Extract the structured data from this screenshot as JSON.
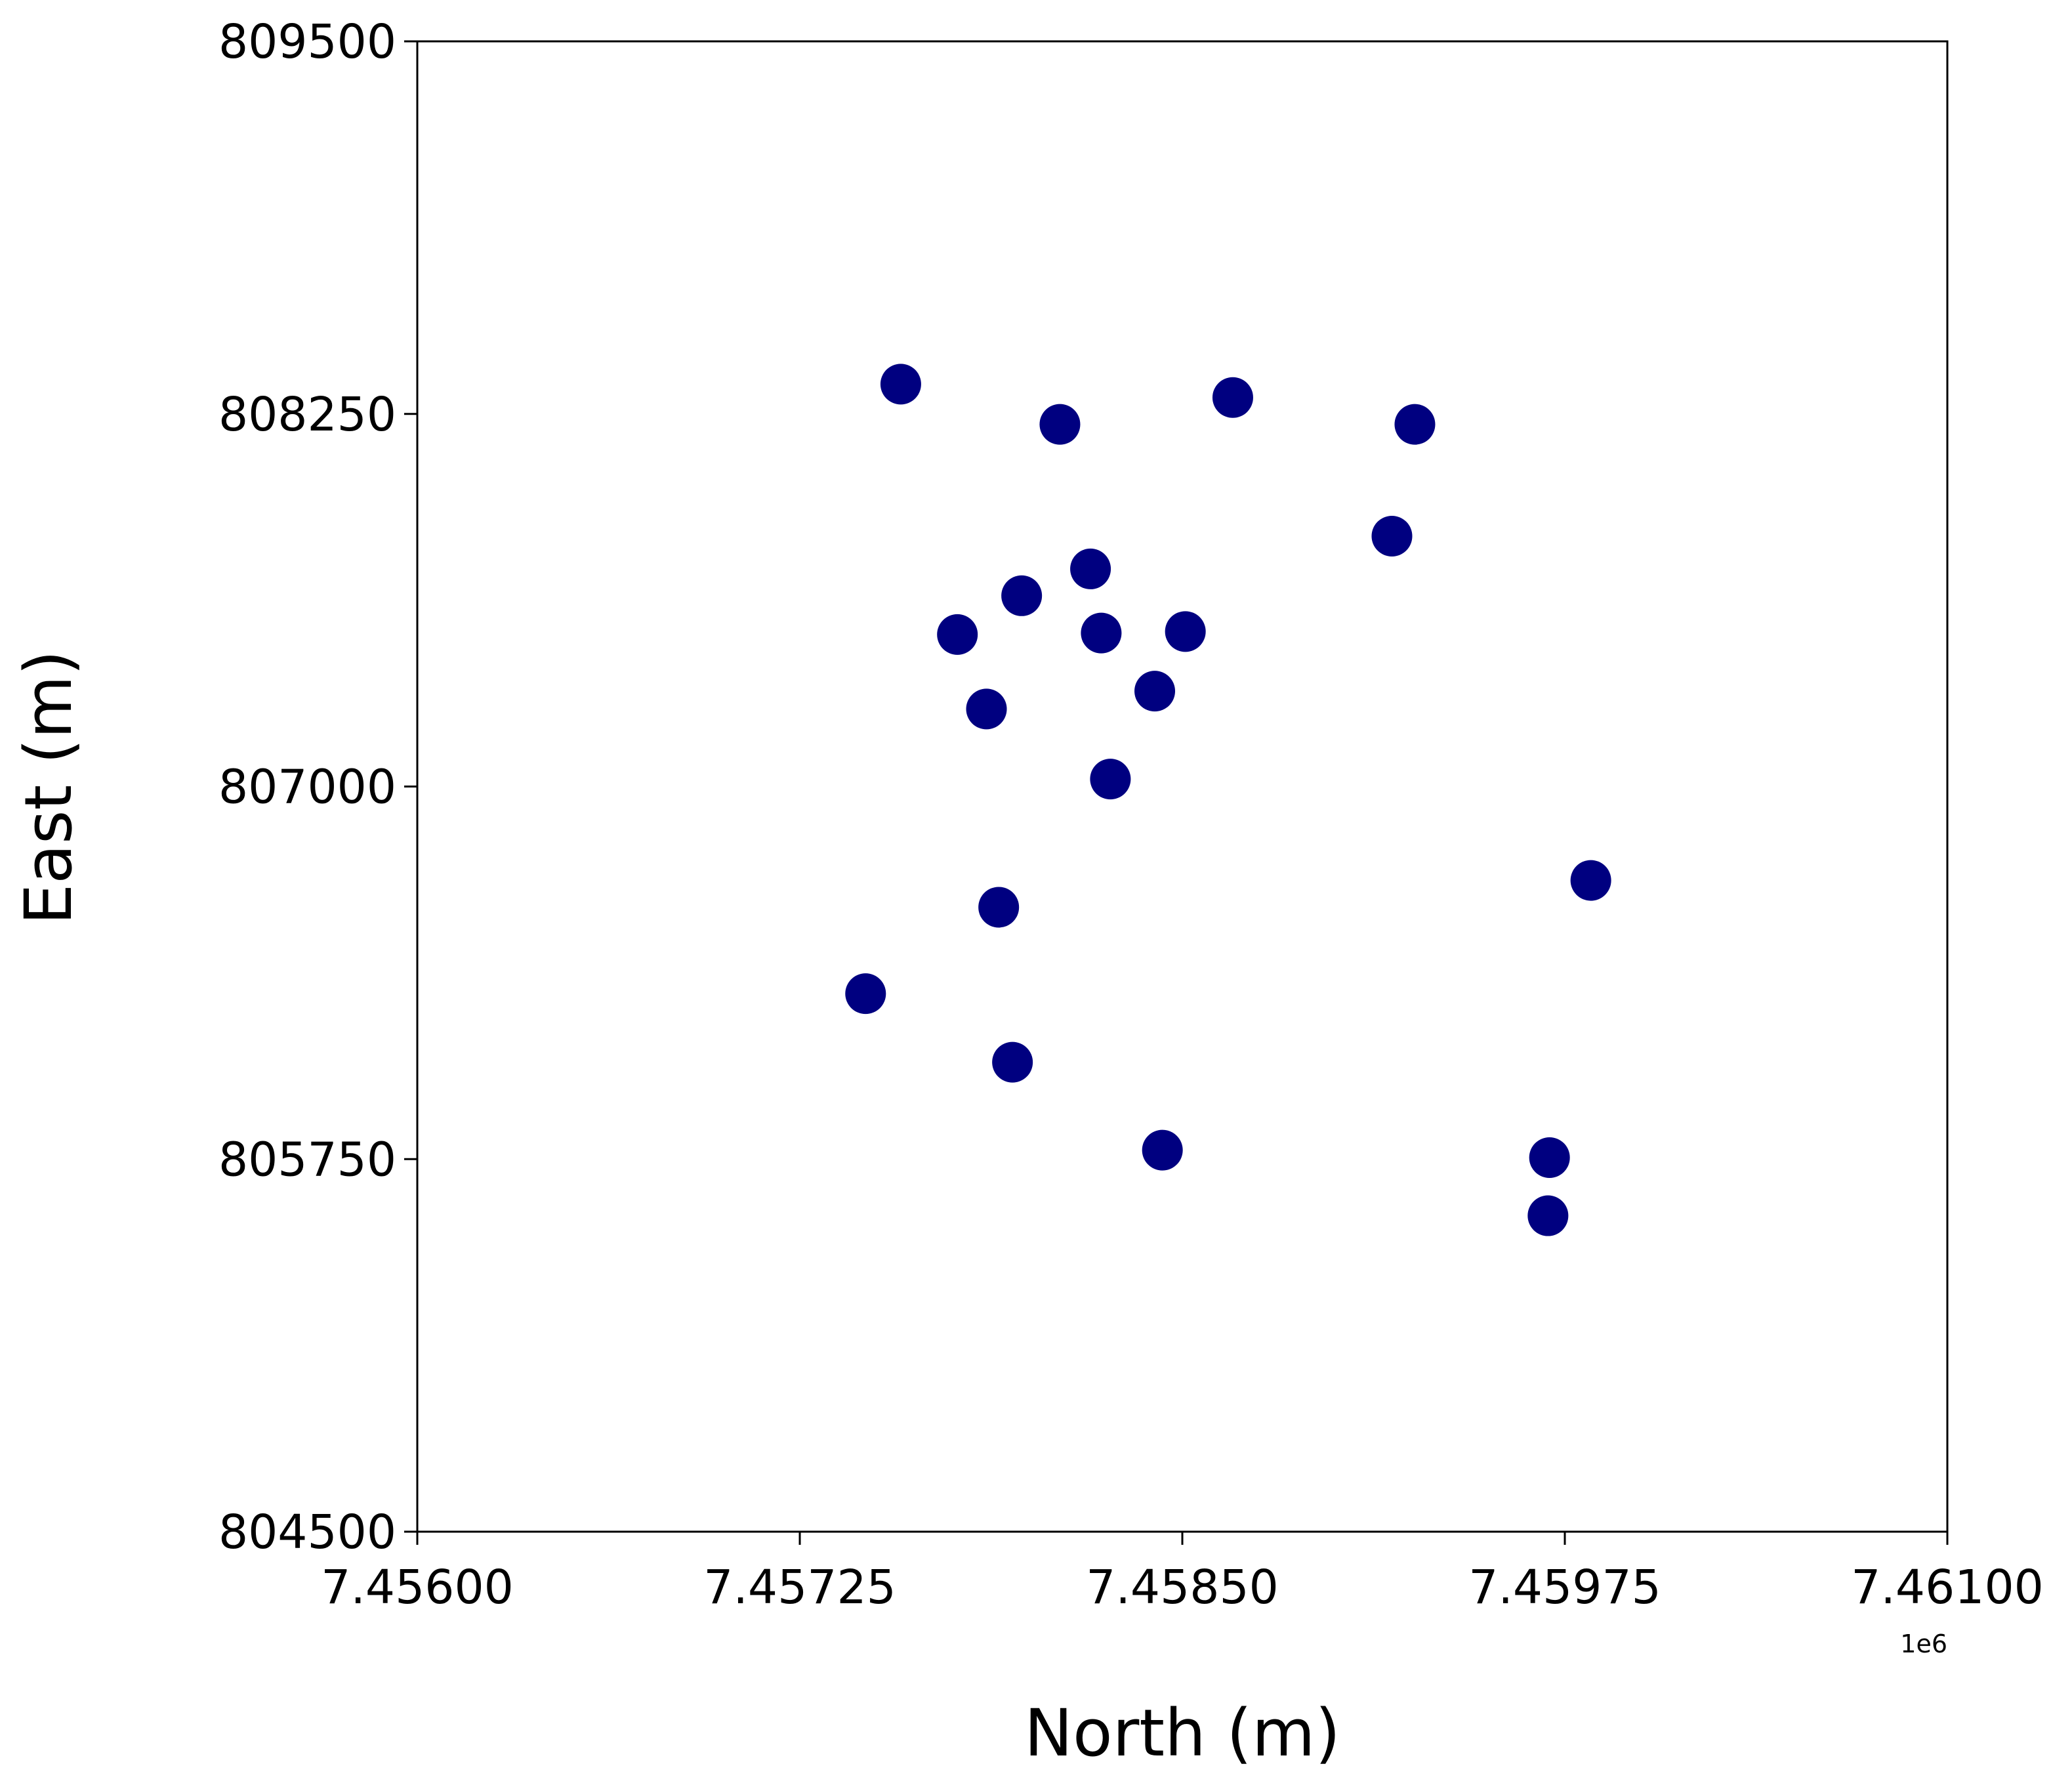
{
  "chart_data": {
    "type": "scatter",
    "title": "",
    "xlabel": "North (m)",
    "ylabel": "East (m)",
    "x_offset_label": "1e6",
    "xlim": [
      7456000,
      7461000
    ],
    "ylim": [
      804500,
      809500
    ],
    "x_ticks": [
      7456000,
      7457250,
      7458500,
      7459750,
      7461000
    ],
    "x_tick_labels": [
      "7.45600",
      "7.45725",
      "7.45850",
      "7.45975",
      "7.46100"
    ],
    "y_ticks": [
      804500,
      805750,
      807000,
      808250,
      809500
    ],
    "y_tick_labels": [
      "804500",
      "805750",
      "807000",
      "808250",
      "809500"
    ],
    "grid": false,
    "legend": "none",
    "marker_color": "#000080",
    "points": [
      {
        "x": 7457580,
        "y": 808350
      },
      {
        "x": 7458100,
        "y": 808215
      },
      {
        "x": 7458665,
        "y": 808305
      },
      {
        "x": 7459260,
        "y": 808215
      },
      {
        "x": 7459185,
        "y": 807840
      },
      {
        "x": 7458200,
        "y": 807730
      },
      {
        "x": 7457975,
        "y": 807640
      },
      {
        "x": 7457765,
        "y": 807510
      },
      {
        "x": 7458235,
        "y": 807515
      },
      {
        "x": 7458510,
        "y": 807520
      },
      {
        "x": 7458410,
        "y": 807320
      },
      {
        "x": 7457860,
        "y": 807260
      },
      {
        "x": 7458265,
        "y": 807025
      },
      {
        "x": 7459835,
        "y": 806685
      },
      {
        "x": 7457900,
        "y": 806595
      },
      {
        "x": 7457465,
        "y": 806305
      },
      {
        "x": 7457945,
        "y": 806075
      },
      {
        "x": 7458435,
        "y": 805780
      },
      {
        "x": 7459700,
        "y": 805755
      },
      {
        "x": 7459695,
        "y": 805560
      }
    ]
  }
}
